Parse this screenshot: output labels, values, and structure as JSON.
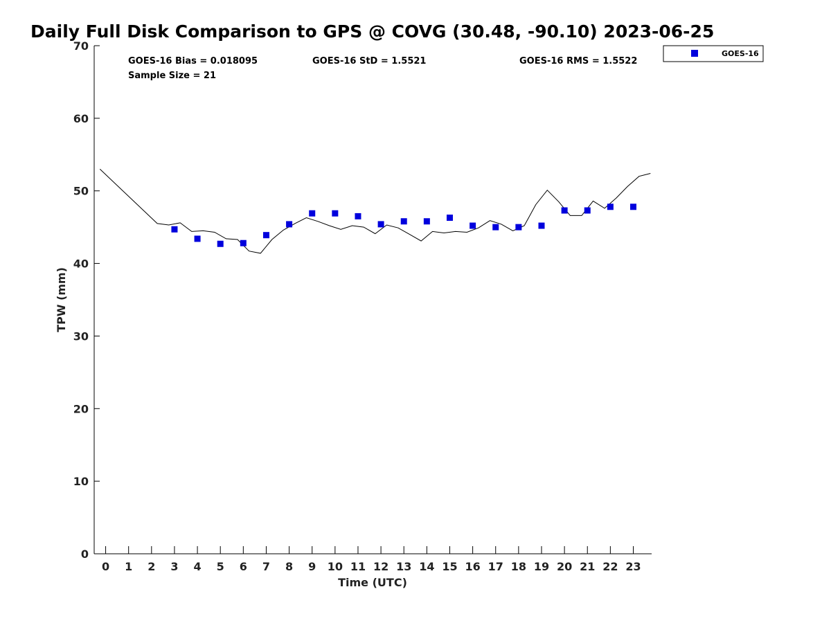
{
  "chart_data": {
    "type": "scatter",
    "title": "Daily Full Disk Comparison to GPS @ COVG (30.48, -90.10) 2023-06-25",
    "xlabel": "Time (UTC)",
    "ylabel": "TPW (mm)",
    "xlim": [
      -0.5,
      23.8
    ],
    "ylim": [
      0,
      70
    ],
    "xticks": [
      0,
      1,
      2,
      3,
      4,
      5,
      6,
      7,
      8,
      9,
      10,
      11,
      12,
      13,
      14,
      15,
      16,
      17,
      18,
      19,
      20,
      21,
      22,
      23
    ],
    "yticks": [
      0,
      10,
      20,
      30,
      40,
      50,
      60,
      70
    ],
    "grid": false,
    "legend_position": "outside-top-right",
    "stats": {
      "bias": "GOES-16 Bias = 0.018095",
      "std": "GOES-16 StD = 1.5521",
      "rms": "GOES-16 RMS = 1.5522",
      "sample": "Sample Size = 21"
    },
    "series": [
      {
        "name": "GOES-16",
        "marker": "square",
        "color": "#0000dd",
        "x": [
          3,
          4,
          5,
          6,
          7,
          8,
          9,
          10,
          11,
          12,
          13,
          14,
          15,
          16,
          17,
          18,
          19,
          20,
          21,
          22,
          23
        ],
        "y": [
          44.7,
          43.4,
          42.7,
          42.8,
          43.9,
          45.4,
          46.9,
          46.9,
          46.5,
          45.4,
          45.8,
          45.8,
          46.3,
          45.2,
          45.0,
          45.0,
          45.2,
          47.3,
          47.3,
          47.8,
          47.8
        ]
      },
      {
        "marker": "line",
        "color": "#000000",
        "x": [
          -0.25,
          2.25,
          2.75,
          3.25,
          3.75,
          4.25,
          4.75,
          5.25,
          5.75,
          6.25,
          6.75,
          7.25,
          7.75,
          8.25,
          8.75,
          9.25,
          9.75,
          10.25,
          10.75,
          11.25,
          11.75,
          12.25,
          12.75,
          13.25,
          13.75,
          14.25,
          14.75,
          15.25,
          15.75,
          16.25,
          16.75,
          17.25,
          17.75,
          18.25,
          18.75,
          19.25,
          19.75,
          20.25,
          20.75,
          21.25,
          21.75,
          22.25,
          22.75,
          23.25,
          23.75
        ],
        "y": [
          53.0,
          45.5,
          45.3,
          45.6,
          44.4,
          44.5,
          44.3,
          43.4,
          43.3,
          41.7,
          41.4,
          43.3,
          44.6,
          45.5,
          46.3,
          45.8,
          45.2,
          44.7,
          45.2,
          45.0,
          44.1,
          45.3,
          44.9,
          44.0,
          43.1,
          44.4,
          44.2,
          44.4,
          44.3,
          44.9,
          45.9,
          45.4,
          44.5,
          45.2,
          48.1,
          50.1,
          48.5,
          46.6,
          46.6,
          48.6,
          47.6,
          49.0,
          50.6,
          52.0,
          52.4
        ]
      }
    ]
  }
}
